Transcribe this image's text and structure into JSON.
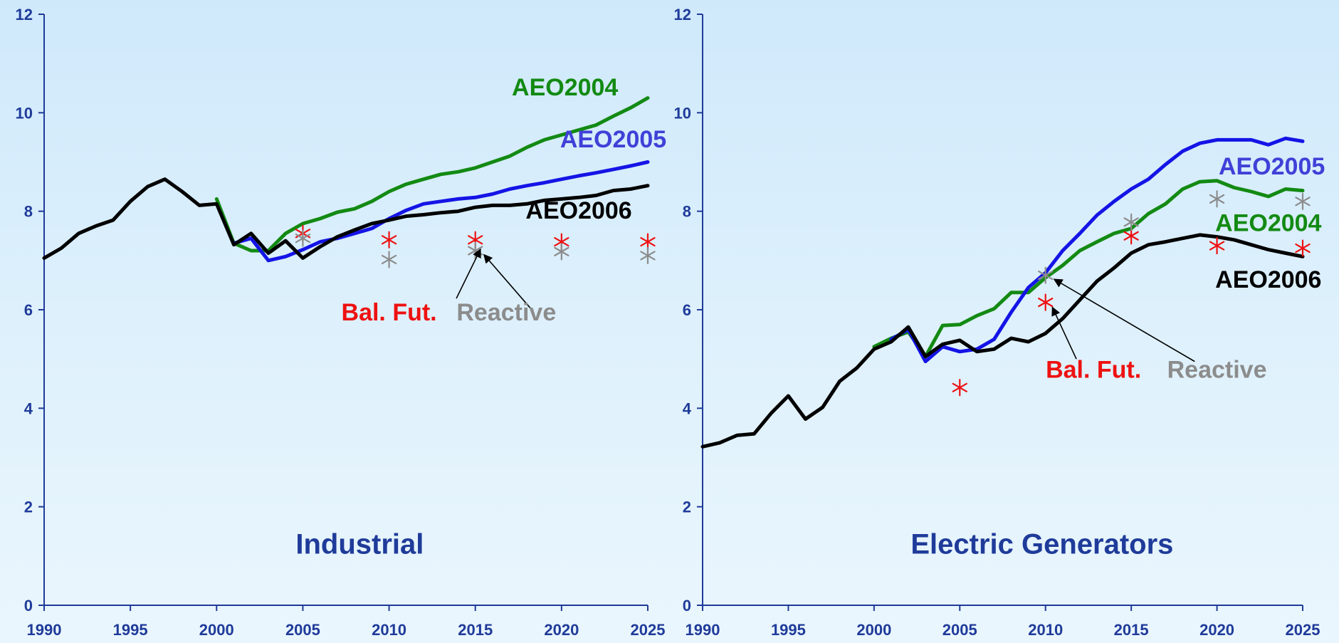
{
  "colors": {
    "axis": "#1f3b9a",
    "AEO2004": "#138a13",
    "AEO2005": "#1414e6",
    "AEO2005_label": "#4040d8",
    "AEO2006": "#000000",
    "bal_fut": "#ee1111",
    "reactive": "#8c8c8c"
  },
  "chart_data": [
    {
      "type": "line",
      "title": "Industrial",
      "xlabel": "",
      "ylabel": "",
      "xlim": [
        1990,
        2025
      ],
      "ylim": [
        0,
        12
      ],
      "x_ticks": [
        "1990",
        "1995",
        "2000",
        "2005",
        "2010",
        "2015",
        "2020",
        "2025"
      ],
      "y_ticks": [
        "0",
        "2",
        "4",
        "6",
        "8",
        "10",
        "12"
      ],
      "series": [
        {
          "name": "AEO2004",
          "color_key": "AEO2004",
          "x": [
            2000,
            2001,
            2002,
            2003,
            2004,
            2005,
            2006,
            2007,
            2008,
            2009,
            2010,
            2011,
            2012,
            2013,
            2014,
            2015,
            2016,
            2017,
            2018,
            2019,
            2020,
            2021,
            2022,
            2023,
            2024,
            2025
          ],
          "y": [
            8.25,
            7.35,
            7.2,
            7.2,
            7.55,
            7.75,
            7.85,
            7.98,
            8.05,
            8.2,
            8.4,
            8.55,
            8.65,
            8.75,
            8.8,
            8.88,
            9.0,
            9.12,
            9.3,
            9.45,
            9.55,
            9.65,
            9.75,
            9.93,
            10.1,
            10.3
          ]
        },
        {
          "name": "AEO2005",
          "color_key": "AEO2005",
          "label_color_key": "AEO2005_label",
          "x": [
            2001,
            2002,
            2003,
            2004,
            2005,
            2006,
            2007,
            2008,
            2009,
            2010,
            2011,
            2012,
            2013,
            2014,
            2015,
            2016,
            2017,
            2018,
            2019,
            2020,
            2021,
            2022,
            2023,
            2024,
            2025
          ],
          "y": [
            7.35,
            7.45,
            7.0,
            7.08,
            7.22,
            7.38,
            7.45,
            7.55,
            7.65,
            7.85,
            8.02,
            8.15,
            8.2,
            8.25,
            8.28,
            8.35,
            8.45,
            8.52,
            8.58,
            8.65,
            8.72,
            8.78,
            8.85,
            8.92,
            9.0
          ]
        },
        {
          "name": "AEO2006",
          "color_key": "AEO2006",
          "x": [
            1990,
            1991,
            1992,
            1993,
            1994,
            1995,
            1996,
            1997,
            1998,
            1999,
            2000,
            2001,
            2002,
            2003,
            2004,
            2005,
            2006,
            2007,
            2008,
            2009,
            2010,
            2011,
            2012,
            2013,
            2014,
            2015,
            2016,
            2017,
            2018,
            2019,
            2020,
            2021,
            2022,
            2023,
            2024,
            2025
          ],
          "y": [
            7.05,
            7.25,
            7.55,
            7.7,
            7.82,
            8.2,
            8.5,
            8.65,
            8.4,
            8.12,
            8.15,
            7.32,
            7.55,
            7.15,
            7.4,
            7.05,
            7.28,
            7.48,
            7.62,
            7.75,
            7.82,
            7.9,
            7.93,
            7.97,
            8.0,
            8.08,
            8.12,
            8.12,
            8.15,
            8.22,
            8.25,
            8.28,
            8.32,
            8.42,
            8.45,
            8.52
          ]
        }
      ],
      "markers": [
        {
          "name": "Bal. Fut.",
          "color_key": "bal_fut",
          "x": [
            2005,
            2010,
            2015,
            2020,
            2025
          ],
          "y": [
            7.55,
            7.42,
            7.42,
            7.38,
            7.38
          ]
        },
        {
          "name": "Reactive",
          "color_key": "reactive",
          "x": [
            2005,
            2010,
            2015,
            2020,
            2025
          ],
          "y": [
            7.45,
            7.02,
            7.2,
            7.18,
            7.1
          ]
        }
      ],
      "labels": [
        {
          "key": "AEO2004",
          "text": "AEO2004",
          "x": 2020.2,
          "y": 10.35
        },
        {
          "key": "AEO2005_label",
          "text": "AEO2005",
          "x": 2023.0,
          "y": 9.3
        },
        {
          "key": "AEO2006",
          "text": "AEO2006",
          "x": 2021.0,
          "y": 7.85
        },
        {
          "key": "bal_fut",
          "text": "Bal. Fut.",
          "x": 2010.0,
          "y": 5.78
        },
        {
          "key": "reactive",
          "text": "Reactive",
          "x": 2016.8,
          "y": 5.78
        }
      ],
      "arrows": [
        {
          "from": [
            2013.9,
            6.23
          ],
          "to": [
            2015.3,
            7.23
          ]
        },
        {
          "from": [
            2018.2,
            6.03
          ],
          "to": [
            2015.5,
            7.12
          ]
        }
      ],
      "title_pos": {
        "x": 2008.3,
        "y": 1.05
      }
    },
    {
      "type": "line",
      "title": "Electric Generators",
      "xlabel": "",
      "ylabel": "",
      "xlim": [
        1990,
        2025
      ],
      "ylim": [
        0,
        12
      ],
      "x_ticks": [
        "1990",
        "1995",
        "2000",
        "2005",
        "2010",
        "2015",
        "2020",
        "2025"
      ],
      "y_ticks": [
        "0",
        "2",
        "4",
        "6",
        "8",
        "10",
        "12"
      ],
      "series": [
        {
          "name": "AEO2004",
          "color_key": "AEO2004",
          "x": [
            2000,
            2001,
            2002,
            2003,
            2004,
            2005,
            2006,
            2007,
            2008,
            2009,
            2010,
            2011,
            2012,
            2013,
            2014,
            2015,
            2016,
            2017,
            2018,
            2019,
            2020,
            2021,
            2022,
            2023,
            2024,
            2025
          ],
          "y": [
            5.25,
            5.42,
            5.55,
            5.05,
            5.68,
            5.7,
            5.88,
            6.02,
            6.35,
            6.35,
            6.65,
            6.9,
            7.2,
            7.38,
            7.55,
            7.65,
            7.95,
            8.15,
            8.45,
            8.6,
            8.62,
            8.48,
            8.4,
            8.3,
            8.45,
            8.42
          ]
        },
        {
          "name": "AEO2005",
          "color_key": "AEO2005",
          "label_color_key": "AEO2005_label",
          "x": [
            2001,
            2002,
            2003,
            2004,
            2005,
            2006,
            2007,
            2008,
            2009,
            2010,
            2011,
            2012,
            2013,
            2014,
            2015,
            2016,
            2017,
            2018,
            2019,
            2020,
            2021,
            2022,
            2023,
            2024,
            2025
          ],
          "y": [
            5.4,
            5.6,
            4.95,
            5.25,
            5.15,
            5.2,
            5.4,
            5.95,
            6.45,
            6.75,
            7.2,
            7.55,
            7.92,
            8.2,
            8.45,
            8.65,
            8.95,
            9.22,
            9.38,
            9.45,
            9.45,
            9.45,
            9.35,
            9.48,
            9.42
          ]
        },
        {
          "name": "AEO2006",
          "color_key": "AEO2006",
          "x": [
            1990,
            1991,
            1992,
            1993,
            1994,
            1995,
            1996,
            1997,
            1998,
            1999,
            2000,
            2001,
            2002,
            2003,
            2004,
            2005,
            2006,
            2007,
            2008,
            2009,
            2010,
            2011,
            2012,
            2013,
            2014,
            2015,
            2016,
            2017,
            2018,
            2019,
            2020,
            2021,
            2022,
            2023,
            2024,
            2025
          ],
          "y": [
            3.22,
            3.3,
            3.45,
            3.48,
            3.9,
            4.25,
            3.78,
            4.02,
            4.55,
            4.82,
            5.2,
            5.35,
            5.65,
            5.05,
            5.3,
            5.38,
            5.15,
            5.2,
            5.42,
            5.35,
            5.52,
            5.82,
            6.2,
            6.58,
            6.85,
            7.15,
            7.32,
            7.38,
            7.45,
            7.52,
            7.48,
            7.42,
            7.32,
            7.22,
            7.15,
            7.08
          ]
        }
      ],
      "markers": [
        {
          "name": "Bal. Fut.",
          "color_key": "bal_fut",
          "x": [
            2005,
            2010,
            2015,
            2020,
            2025
          ],
          "y": [
            4.42,
            6.15,
            7.5,
            7.3,
            7.25
          ]
        },
        {
          "name": "Reactive",
          "color_key": "reactive",
          "x": [
            2010,
            2015,
            2020,
            2025
          ],
          "y": [
            6.7,
            7.78,
            8.25,
            8.2
          ]
        }
      ],
      "labels": [
        {
          "key": "AEO2005_label",
          "text": "AEO2005",
          "x": 2023.2,
          "y": 8.75
        },
        {
          "key": "AEO2004",
          "text": "AEO2004",
          "x": 2023.0,
          "y": 7.6
        },
        {
          "key": "AEO2006",
          "text": "AEO2006",
          "x": 2023.0,
          "y": 6.45
        },
        {
          "key": "bal_fut",
          "text": "Bal. Fut.",
          "x": 2012.8,
          "y": 4.62
        },
        {
          "key": "reactive",
          "text": "Reactive",
          "x": 2020.0,
          "y": 4.62
        }
      ],
      "arrows": [
        {
          "from": [
            2011.8,
            5.0
          ],
          "to": [
            2010.4,
            6.05
          ]
        },
        {
          "from": [
            2018.7,
            4.95
          ],
          "to": [
            2010.5,
            6.62
          ]
        }
      ],
      "title_pos": {
        "x": 2009.8,
        "y": 1.05
      }
    }
  ]
}
